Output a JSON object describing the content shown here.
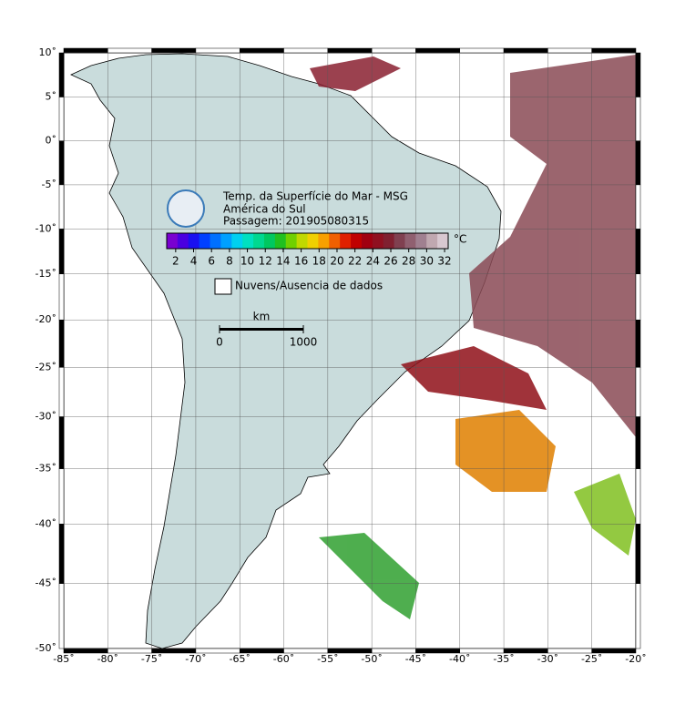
{
  "map": {
    "title": "Temp. da Superfície do Mar - MSG",
    "region": "América do Sul",
    "pass": "Passagem: 201905080315",
    "xlim": [
      -85,
      -20
    ],
    "ylim": [
      -50,
      10
    ],
    "xticks": [
      {
        "value": -85,
        "label": "-85˚"
      },
      {
        "value": -80,
        "label": "-80˚"
      },
      {
        "value": -75,
        "label": "-75˚"
      },
      {
        "value": -70,
        "label": "-70˚"
      },
      {
        "value": -65,
        "label": "-65˚"
      },
      {
        "value": -60,
        "label": "-60˚"
      },
      {
        "value": -55,
        "label": "-55˚"
      },
      {
        "value": -50,
        "label": "-50˚"
      },
      {
        "value": -45,
        "label": "-45˚"
      },
      {
        "value": -40,
        "label": "-40˚"
      },
      {
        "value": -35,
        "label": "-35˚"
      },
      {
        "value": -30,
        "label": "-30˚"
      },
      {
        "value": -25,
        "label": "-25˚"
      },
      {
        "value": -20,
        "label": "-20˚"
      }
    ],
    "yticks": [
      {
        "value": 10,
        "label": "10˚"
      },
      {
        "value": 5,
        "label": "5˚"
      },
      {
        "value": 0,
        "label": "0˚"
      },
      {
        "value": -5,
        "label": "-5˚"
      },
      {
        "value": -10,
        "label": "-10˚"
      },
      {
        "value": -15,
        "label": "-15˚"
      },
      {
        "value": -20,
        "label": "-20˚"
      },
      {
        "value": -25,
        "label": "-25˚"
      },
      {
        "value": -30,
        "label": "-30˚"
      },
      {
        "value": -35,
        "label": "-35˚"
      },
      {
        "value": -40,
        "label": "-40˚"
      },
      {
        "value": -45,
        "label": "-45˚"
      },
      {
        "value": -50,
        "label": "-50˚"
      }
    ],
    "colorbar": {
      "lim": [
        1,
        32.4
      ],
      "ticks": [
        2,
        4,
        6,
        8,
        10,
        12,
        14,
        16,
        18,
        20,
        22,
        24,
        26,
        28,
        30,
        32
      ],
      "unit": "°C",
      "colors": [
        "#7a00d0",
        "#4a00e0",
        "#1a10f0",
        "#0040ff",
        "#0070ff",
        "#00a0ff",
        "#00d0f0",
        "#00e0c0",
        "#00d890",
        "#00c860",
        "#20c020",
        "#70d000",
        "#c0d800",
        "#f0d000",
        "#f8a000",
        "#f06000",
        "#e02000",
        "#c00000",
        "#a00010",
        "#901020",
        "#802030",
        "#804050",
        "#906070",
        "#a08090",
        "#c0a8b0",
        "#d8c8d0"
      ]
    },
    "legend": "Nuvens/Ausencia de dados",
    "scale_bar": {
      "unit": "km",
      "ticks": [
        0,
        1000
      ]
    }
  }
}
